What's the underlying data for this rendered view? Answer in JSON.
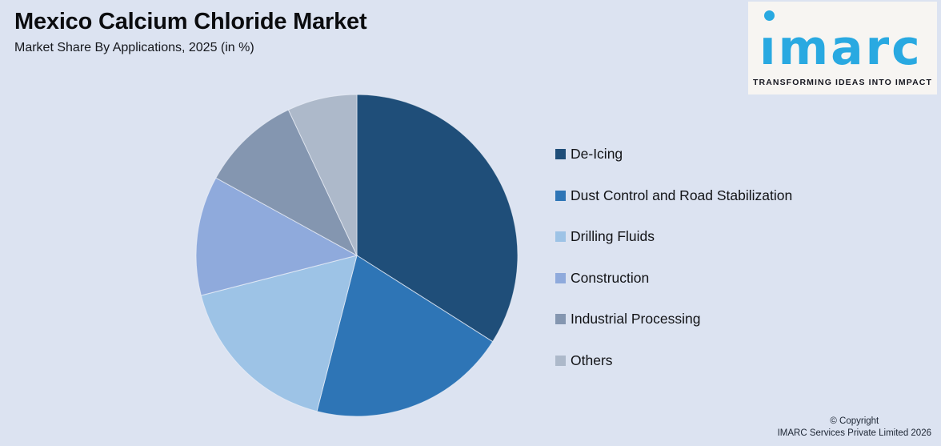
{
  "canvas": {
    "background": "#dce3f1"
  },
  "header": {
    "title": "Mexico Calcium Chloride Market",
    "subtitle": "Market Share By Applications, 2025 (in %)"
  },
  "logo": {
    "brand": "imarc",
    "tagline": "TRANSFORMING IDEAS INTO IMPACT",
    "brand_color": "#29a9e1",
    "tagline_color": "#15161f",
    "background": "#f7f5f2"
  },
  "chart_data": {
    "type": "pie",
    "title": "Mexico Calcium Chloride Market",
    "subtitle": "Market Share By Applications, 2025 (in %)",
    "unit": "%",
    "start_angle_deg": 0,
    "direction": "clockwise",
    "legend_position": "right",
    "categories": [
      "De-Icing",
      "Dust Control and Road Stabilization",
      "Drilling Fluids",
      "Construction",
      "Industrial Processing",
      "Others"
    ],
    "values": [
      34,
      20,
      17,
      12,
      10,
      7
    ],
    "colors": [
      "#1F4E79",
      "#2E75B6",
      "#9DC3E6",
      "#8FAADC",
      "#8496B0",
      "#ADB9CA"
    ]
  },
  "footer": {
    "copyright_line1": "© Copyright",
    "copyright_line2": "IMARC Services Private Limited 2026"
  }
}
